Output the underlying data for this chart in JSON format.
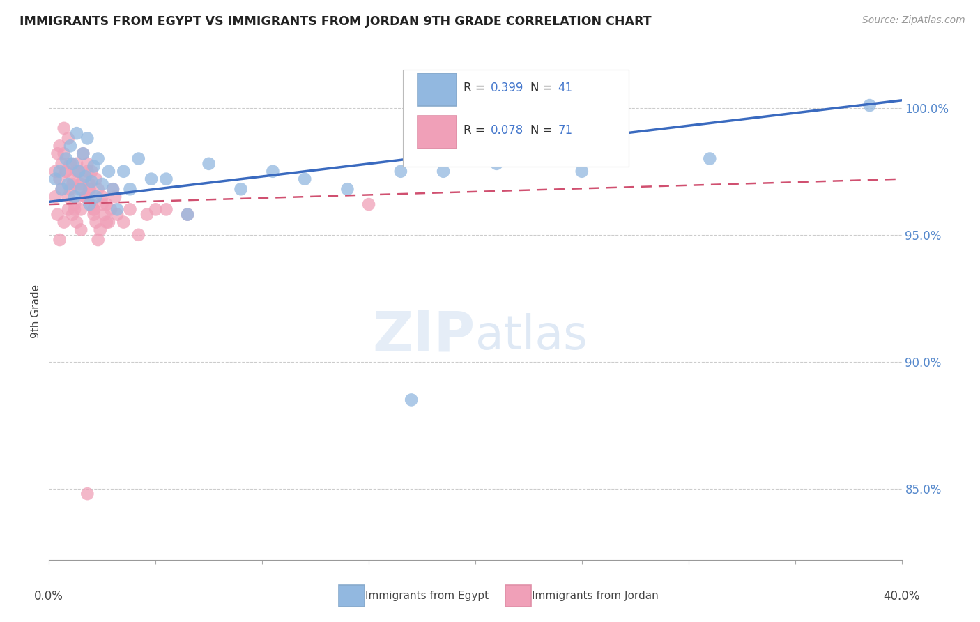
{
  "title": "IMMIGRANTS FROM EGYPT VS IMMIGRANTS FROM JORDAN 9TH GRADE CORRELATION CHART",
  "source": "Source: ZipAtlas.com",
  "ylabel": "9th Grade",
  "ytick_labels": [
    "85.0%",
    "90.0%",
    "95.0%",
    "100.0%"
  ],
  "ytick_values": [
    0.85,
    0.9,
    0.95,
    1.0
  ],
  "xlim": [
    0.0,
    0.4
  ],
  "ylim": [
    0.822,
    1.018
  ],
  "egypt_color": "#92b8e0",
  "jordan_color": "#f0a0b8",
  "egypt_line_color": "#3a6abf",
  "jordan_line_color": "#d05070",
  "watermark_zip": "ZIP",
  "watermark_atlas": "atlas",
  "egypt_x": [
    0.003,
    0.005,
    0.006,
    0.008,
    0.009,
    0.01,
    0.011,
    0.012,
    0.013,
    0.014,
    0.015,
    0.016,
    0.017,
    0.018,
    0.019,
    0.02,
    0.021,
    0.022,
    0.023,
    0.025,
    0.028,
    0.03,
    0.032,
    0.035,
    0.038,
    0.042,
    0.048,
    0.055,
    0.065,
    0.075,
    0.09,
    0.105,
    0.12,
    0.14,
    0.165,
    0.185,
    0.21,
    0.25,
    0.17,
    0.31,
    0.385
  ],
  "egypt_y": [
    0.972,
    0.975,
    0.968,
    0.98,
    0.97,
    0.985,
    0.978,
    0.965,
    0.99,
    0.975,
    0.968,
    0.982,
    0.973,
    0.988,
    0.962,
    0.971,
    0.977,
    0.965,
    0.98,
    0.97,
    0.975,
    0.968,
    0.96,
    0.975,
    0.968,
    0.98,
    0.972,
    0.972,
    0.958,
    0.978,
    0.968,
    0.975,
    0.972,
    0.968,
    0.975,
    0.975,
    0.978,
    0.975,
    0.885,
    0.98,
    1.001
  ],
  "jordan_x": [
    0.003,
    0.004,
    0.005,
    0.006,
    0.007,
    0.008,
    0.009,
    0.01,
    0.011,
    0.012,
    0.013,
    0.014,
    0.015,
    0.016,
    0.017,
    0.018,
    0.019,
    0.02,
    0.021,
    0.022,
    0.003,
    0.004,
    0.005,
    0.006,
    0.007,
    0.008,
    0.009,
    0.01,
    0.011,
    0.012,
    0.013,
    0.014,
    0.015,
    0.016,
    0.017,
    0.018,
    0.019,
    0.02,
    0.021,
    0.022,
    0.023,
    0.024,
    0.025,
    0.026,
    0.027,
    0.028,
    0.03,
    0.032,
    0.035,
    0.038,
    0.042,
    0.046,
    0.05,
    0.005,
    0.007,
    0.009,
    0.011,
    0.013,
    0.015,
    0.017,
    0.019,
    0.021,
    0.023,
    0.025,
    0.027,
    0.029,
    0.031,
    0.055,
    0.065,
    0.15,
    0.018
  ],
  "jordan_y": [
    0.975,
    0.982,
    0.985,
    0.978,
    0.992,
    0.975,
    0.988,
    0.968,
    0.972,
    0.96,
    0.978,
    0.975,
    0.97,
    0.982,
    0.965,
    0.978,
    0.968,
    0.975,
    0.96,
    0.972,
    0.965,
    0.958,
    0.972,
    0.968,
    0.982,
    0.975,
    0.965,
    0.978,
    0.97,
    0.962,
    0.975,
    0.968,
    0.96,
    0.972,
    0.965,
    0.975,
    0.968,
    0.962,
    0.958,
    0.955,
    0.948,
    0.952,
    0.965,
    0.958,
    0.962,
    0.955,
    0.968,
    0.958,
    0.955,
    0.96,
    0.95,
    0.958,
    0.96,
    0.948,
    0.955,
    0.96,
    0.958,
    0.955,
    0.952,
    0.965,
    0.97,
    0.96,
    0.968,
    0.962,
    0.955,
    0.96,
    0.965,
    0.96,
    0.958,
    0.962,
    0.848
  ]
}
